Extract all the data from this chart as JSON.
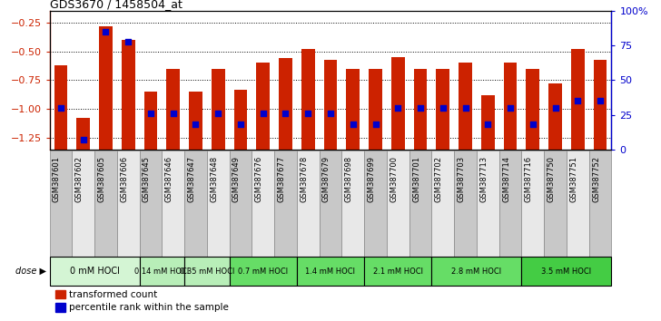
{
  "title": "GDS3670 / 1458504_at",
  "samples": [
    "GSM387601",
    "GSM387602",
    "GSM387605",
    "GSM387606",
    "GSM387645",
    "GSM387646",
    "GSM387647",
    "GSM387648",
    "GSM387649",
    "GSM387676",
    "GSM387677",
    "GSM387678",
    "GSM387679",
    "GSM387698",
    "GSM387699",
    "GSM387700",
    "GSM387701",
    "GSM387702",
    "GSM387703",
    "GSM387713",
    "GSM387714",
    "GSM387716",
    "GSM387750",
    "GSM387751",
    "GSM387752"
  ],
  "bar_values": [
    -0.62,
    -1.08,
    -0.28,
    -0.4,
    -0.85,
    -0.65,
    -0.85,
    -0.65,
    -0.83,
    -0.6,
    -0.56,
    -0.48,
    -0.57,
    -0.65,
    -0.65,
    -0.55,
    -0.65,
    -0.65,
    -0.6,
    -0.88,
    -0.6,
    -0.65,
    -0.78,
    -0.48,
    -0.57
  ],
  "percentile_values": [
    30,
    7,
    85,
    78,
    26,
    26,
    18,
    26,
    18,
    26,
    26,
    26,
    26,
    18,
    18,
    30,
    30,
    30,
    30,
    18,
    30,
    18,
    30,
    35,
    35
  ],
  "dose_groups": [
    {
      "label": "0 mM HOCl",
      "start": 0,
      "end": 4,
      "color": "#d4f5d4"
    },
    {
      "label": "0.14 mM HOCl",
      "start": 4,
      "end": 6,
      "color": "#b8eeb8"
    },
    {
      "label": "0.35 mM HOCl",
      "start": 6,
      "end": 8,
      "color": "#b8eeb8"
    },
    {
      "label": "0.7 mM HOCl",
      "start": 8,
      "end": 11,
      "color": "#66dd66"
    },
    {
      "label": "1.4 mM HOCl",
      "start": 11,
      "end": 14,
      "color": "#66dd66"
    },
    {
      "label": "2.1 mM HOCl",
      "start": 14,
      "end": 17,
      "color": "#66dd66"
    },
    {
      "label": "2.8 mM HOCl",
      "start": 17,
      "end": 21,
      "color": "#66dd66"
    },
    {
      "label": "3.5 mM HOCl",
      "start": 21,
      "end": 25,
      "color": "#44cc44"
    }
  ],
  "ylim_left": [
    -1.35,
    -0.15
  ],
  "ylim_right": [
    0,
    100
  ],
  "yticks_left": [
    -0.25,
    -0.5,
    -0.75,
    -1.0,
    -1.25
  ],
  "yticks_right": [
    0,
    25,
    50,
    75,
    100
  ],
  "bar_color": "#cc2200",
  "percentile_color": "#0000cc",
  "background_color": "#ffffff",
  "sample_box_colors": [
    "#c8c8c8",
    "#e8e8e8"
  ]
}
